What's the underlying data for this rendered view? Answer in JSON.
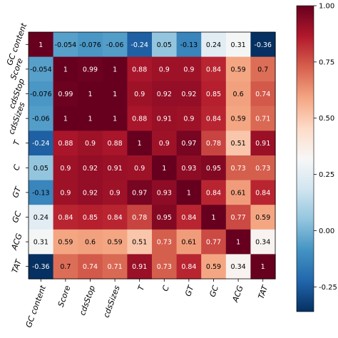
{
  "chart_data": {
    "type": "heatmap",
    "row_labels": [
      "GC content",
      "Score",
      "cdsStop",
      "cdsSizes",
      "T",
      "C",
      "GT",
      "GC",
      "ACG",
      "TAT"
    ],
    "col_labels": [
      "GC content",
      "Score",
      "cdsStop",
      "cdsSizes",
      "T",
      "C",
      "GT",
      "GC",
      "ACG",
      "TAT"
    ],
    "values": [
      [
        "1",
        "-0.054",
        "-0.076",
        "-0.06",
        "-0.24",
        "0.05",
        "-0.13",
        "0.24",
        "0.31",
        "-0.36"
      ],
      [
        "-0.054",
        "1",
        "0.99",
        "1",
        "0.88",
        "0.9",
        "0.9",
        "0.84",
        "0.59",
        "0.7"
      ],
      [
        "-0.076",
        "0.99",
        "1",
        "1",
        "0.9",
        "0.92",
        "0.92",
        "0.85",
        "0.6",
        "0.74"
      ],
      [
        "-0.06",
        "1",
        "1",
        "1",
        "0.88",
        "0.91",
        "0.9",
        "0.84",
        "0.59",
        "0.71"
      ],
      [
        "-0.24",
        "0.88",
        "0.9",
        "0.88",
        "1",
        "0.9",
        "0.97",
        "0.78",
        "0.51",
        "0.91"
      ],
      [
        "0.05",
        "0.9",
        "0.92",
        "0.91",
        "0.9",
        "1",
        "0.93",
        "0.95",
        "0.73",
        "0.73"
      ],
      [
        "-0.13",
        "0.9",
        "0.92",
        "0.9",
        "0.97",
        "0.93",
        "1",
        "0.84",
        "0.61",
        "0.84"
      ],
      [
        "0.24",
        "0.84",
        "0.85",
        "0.84",
        "0.78",
        "0.95",
        "0.84",
        "1",
        "0.77",
        "0.59"
      ],
      [
        "0.31",
        "0.59",
        "0.6",
        "0.59",
        "0.51",
        "0.73",
        "0.61",
        "0.77",
        "1",
        "0.34"
      ],
      [
        "-0.36",
        "0.7",
        "0.74",
        "0.71",
        "0.91",
        "0.73",
        "0.84",
        "0.59",
        "0.34",
        "1"
      ]
    ],
    "colormap": "RdBu_r",
    "vmin": -0.36,
    "vmax": 1.0,
    "colorbar": {
      "ticks": [
        1.0,
        0.75,
        0.5,
        0.25,
        0.0,
        -0.25
      ],
      "tick_labels": [
        "1.00",
        "0.75",
        "0.50",
        "0.25",
        "0.00",
        "-0.25"
      ]
    },
    "colormap_stops": [
      "#053061",
      "#2166ac",
      "#4393c3",
      "#92c5de",
      "#d1e5f0",
      "#f7f7f7",
      "#fddbc7",
      "#f4a582",
      "#d6604d",
      "#b2182b",
      "#67001f"
    ],
    "title": "",
    "xlabel": "",
    "ylabel": ""
  }
}
